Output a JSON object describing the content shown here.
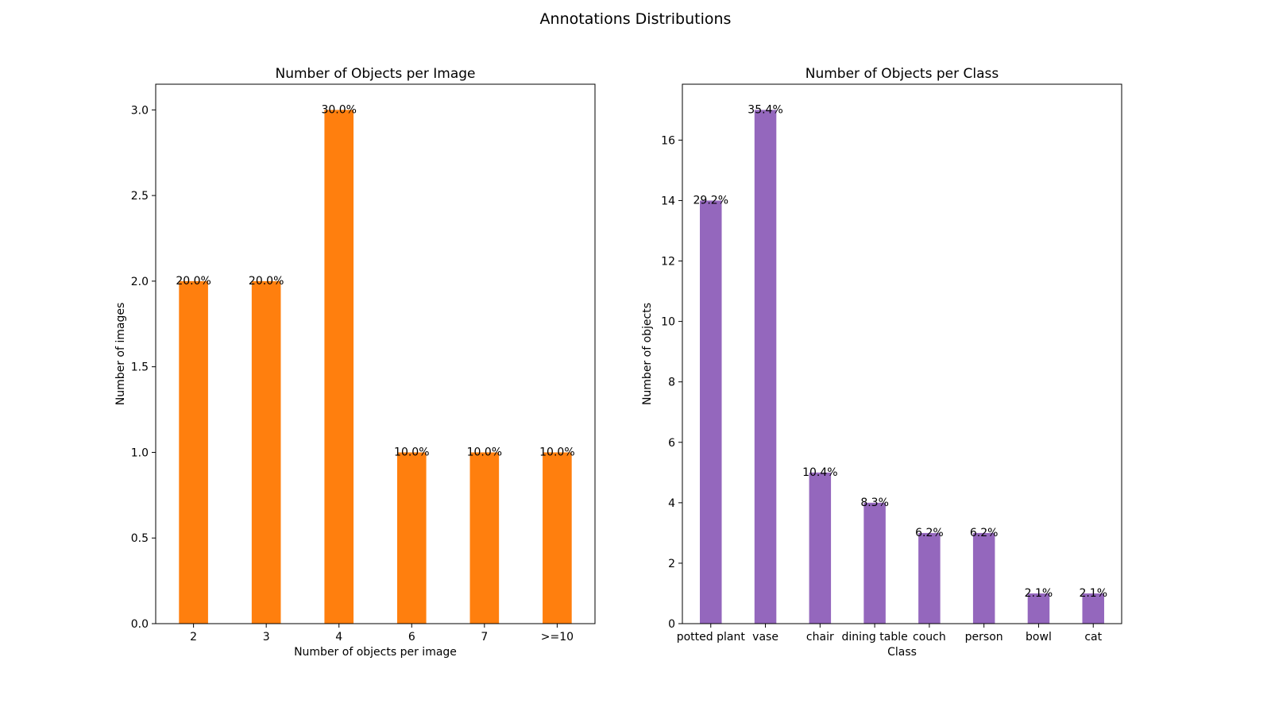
{
  "figure_title": "Annotations Distributions",
  "chart_data": [
    {
      "type": "bar",
      "title": "Number of Objects per Image",
      "xlabel": "Number of objects per image",
      "ylabel": "Number of images",
      "categories": [
        "2",
        "3",
        "4",
        "6",
        "7",
        ">=10"
      ],
      "values": [
        2,
        2,
        3,
        1,
        1,
        1
      ],
      "data_labels": [
        "20.0%",
        "20.0%",
        "30.0%",
        "10.0%",
        "10.0%",
        "10.0%"
      ],
      "ylim": [
        0,
        3.15
      ],
      "yticks": [
        0.0,
        0.5,
        1.0,
        1.5,
        2.0,
        2.5,
        3.0
      ],
      "ytick_labels": [
        "0.0",
        "0.5",
        "1.0",
        "1.5",
        "2.0",
        "2.5",
        "3.0"
      ],
      "color": "#ff7f0e",
      "grid": false,
      "legend": "none"
    },
    {
      "type": "bar",
      "title": "Number of Objects per Class",
      "xlabel": "Class",
      "ylabel": "Number of objects",
      "categories": [
        "potted plant",
        "vase",
        "chair",
        "dining table",
        "couch",
        "person",
        "bowl",
        "cat"
      ],
      "values": [
        14,
        17,
        5,
        4,
        3,
        3,
        1,
        1
      ],
      "data_labels": [
        "29.2%",
        "35.4%",
        "10.4%",
        "8.3%",
        "6.2%",
        "6.2%",
        "2.1%",
        "2.1%"
      ],
      "ylim": [
        0,
        17.85
      ],
      "yticks": [
        0,
        2,
        4,
        6,
        8,
        10,
        12,
        14,
        16
      ],
      "ytick_labels": [
        "0",
        "2",
        "4",
        "6",
        "8",
        "10",
        "12",
        "14",
        "16"
      ],
      "color": "#9467bd",
      "grid": false,
      "legend": "none"
    }
  ]
}
